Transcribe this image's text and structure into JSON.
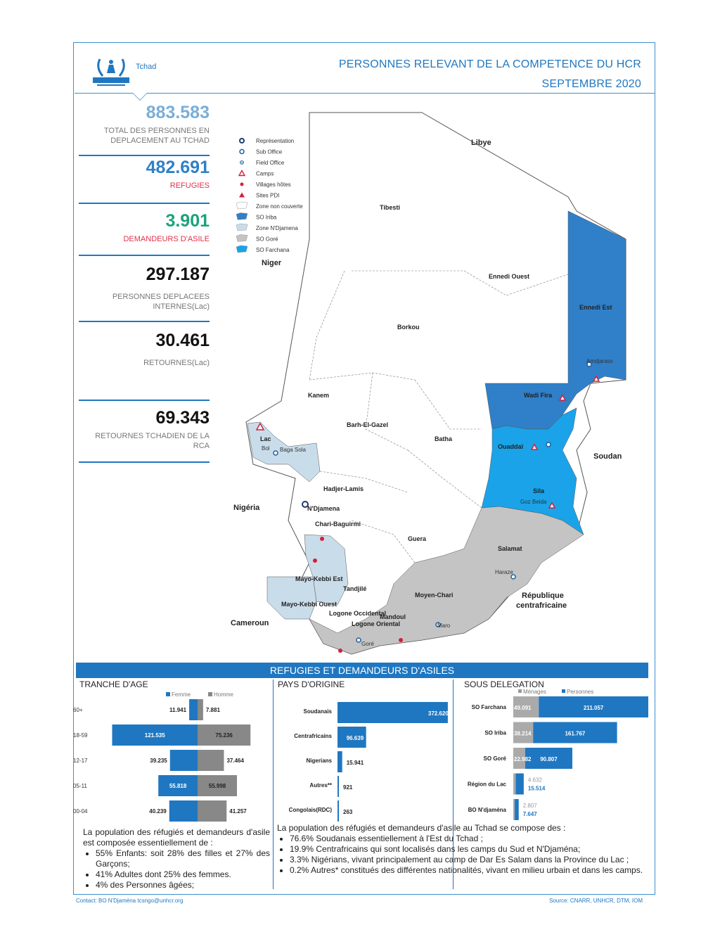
{
  "header": {
    "org": "UNHCR",
    "country": "Tchad",
    "title_line1": "PERSONNES RELEVANT DE LA COMPETENCE DU HCR",
    "title_line2": "SEPTEMBRE  2020"
  },
  "stats": [
    {
      "value": "883.583",
      "label": "TOTAL DES PERSONNES EN DEPLACEMENT AU TCHAD",
      "color": "#7aaed8"
    },
    {
      "value": "482.691",
      "label": "REFUGIES",
      "color": "#2f80c8",
      "label_color": "#e0314b"
    },
    {
      "value": "3.901",
      "label": "DEMANDEURS D'ASILE",
      "color": "#1aa37a",
      "label_color": "#e0314b"
    },
    {
      "value": "297.187",
      "label": "PERSONNES DEPLACEES INTERNES(Lac)",
      "color": "#111111"
    },
    {
      "value": "30.461",
      "label": "RETOURNES(Lac)",
      "color": "#111111"
    },
    {
      "value": "69.343",
      "label": "RETOURNES TCHADIEN DE LA RCA",
      "color": "#111111"
    }
  ],
  "map": {
    "legend": [
      {
        "icon": "representation-icon",
        "label": "Représentation"
      },
      {
        "icon": "sub-office-icon",
        "label": "Sub Office"
      },
      {
        "icon": "field-office-icon",
        "label": "Field Office"
      },
      {
        "icon": "camp-icon",
        "label": "Camps"
      },
      {
        "icon": "host-village-icon",
        "label": "Villages hôtes"
      },
      {
        "icon": "idp-site-icon",
        "label": "Sites PDI"
      },
      {
        "icon": "zone-uncovered-swatch",
        "label": "Zone non couverte"
      },
      {
        "icon": "so-iriba-swatch",
        "label": "SO Iriba"
      },
      {
        "icon": "zone-ndjamena-swatch",
        "label": "Zone N'Djamena"
      },
      {
        "icon": "so-gore-swatch",
        "label": "SO Goré"
      },
      {
        "icon": "so-farchana-swatch",
        "label": "SO Farchana"
      }
    ],
    "colors": {
      "iriba": "#2f80c8",
      "farchana": "#1aa3e8",
      "gore": "#c4c4c4",
      "ndjamena": "#c9dcea",
      "uncovered": "#ffffff"
    },
    "countries": [
      "Libye",
      "Niger",
      "Soudan",
      "Nigéria",
      "Cameroun",
      "République centrafricaine"
    ],
    "regions": [
      "Tibesti",
      "Ennedi Ouest",
      "Ennedi Est",
      "Borkou",
      "Kanem",
      "Barh-El-Gazel",
      "Batha",
      "Lac",
      "Hadjer-Lamis",
      "N'Djamena",
      "Chari-Baguirmi",
      "Guera",
      "Wadi Fira",
      "Ouaddaï",
      "Sila",
      "Salamat",
      "Mayo-Kebbi Est",
      "Mayo-Kebbi Ouest",
      "Tandjilé",
      "Logone Occidental",
      "Logone Oriental",
      "Mandoul",
      "Moyen-Chari"
    ],
    "places": [
      "Amdjarass",
      "Bol",
      "Baga Sola",
      "Goz Beida",
      "Maro",
      "Goré",
      "Haraze"
    ]
  },
  "section_title": "REFUGIES ET DEMANDEURS D'ASILES",
  "age": {
    "title": "TRANCHE D'AGE",
    "legend_f": "Femme",
    "legend_m": "Homme",
    "rows": [
      {
        "label": "60+",
        "f": 11941,
        "m": 7881,
        "f_text": "11.941",
        "m_text": "7.881"
      },
      {
        "label": "18-59",
        "f": 121535,
        "m": 75236,
        "f_text": "121.535",
        "m_text": "75.236"
      },
      {
        "label": "12-17",
        "f": 39235,
        "m": 37464,
        "f_text": "39.235",
        "m_text": "37.464"
      },
      {
        "label": "05-11",
        "f": 55818,
        "m": 55998,
        "f_text": "55.818",
        "m_text": "55.998"
      },
      {
        "label": "00-04",
        "f": 40239,
        "m": 41257,
        "f_text": "40.239",
        "m_text": "41.257"
      }
    ],
    "para": "La population des réfugiés et demandeurs d'asile est composée essentiellement de :",
    "bullets": [
      "55%   Enfants: soit 28% des filles et 27% des Garçons;",
      "41% Adultes dont 25% des femmes.",
      "4% des Personnes âgées;"
    ]
  },
  "origin": {
    "title": "PAYS D'ORIGINE",
    "rows": [
      {
        "label": "Soudanais",
        "value": 372620,
        "text": "372.620"
      },
      {
        "label": "Centrafricains",
        "value": 96639,
        "text": "96.639"
      },
      {
        "label": "Nigerians",
        "value": 15941,
        "text": "15.941"
      },
      {
        "label": "Autres**",
        "value": 921,
        "text": "921"
      },
      {
        "label": "Congolais(RDC)",
        "value": 263,
        "text": "263"
      }
    ],
    "para": "La population des réfugiés et demandeurs d'asile au Tchad se compose des :",
    "bullets": [
      "76.6% Soudanais essentiellement à l'Est du Tchad ;",
      "19.9% Centrafricains qui sont localisés dans les camps du Sud et N'Djaména;",
      "3.3% Nigérians, vivant principalement au camp de Dar Es Salam dans la Province du Lac ;",
      "0.2% Autres* constitués des différentes nationalités, vivant en milieu urbain et dans les camps."
    ]
  },
  "delegation": {
    "title": "SOUS DELEGATION",
    "legend_m": "Ménages",
    "legend_p": "Personnes",
    "rows": [
      {
        "label": "SO Farchana",
        "m": 49091,
        "p": 211057,
        "m_text": "49.091",
        "p_text": "211.057"
      },
      {
        "label": "SO Iriba",
        "m": 38214,
        "p": 161767,
        "m_text": "38.214",
        "p_text": "161.767"
      },
      {
        "label": "SO Goré",
        "m": 22982,
        "p": 90807,
        "m_text": "22.982",
        "p_text": "90.807"
      },
      {
        "label": "Région du Lac",
        "m": 4632,
        "p": 15514,
        "m_text": "4.632",
        "p_text": "15.514"
      },
      {
        "label": "BO N'djaména",
        "m": 2807,
        "p": 7647,
        "m_text": "2.807",
        "p_text": "7.647"
      }
    ]
  },
  "footer": {
    "contact": "Contact: BO N'Djaména tcsngo@unhcr.org",
    "source": "Source: CNARR, UNHCR, DTM, IOM"
  }
}
